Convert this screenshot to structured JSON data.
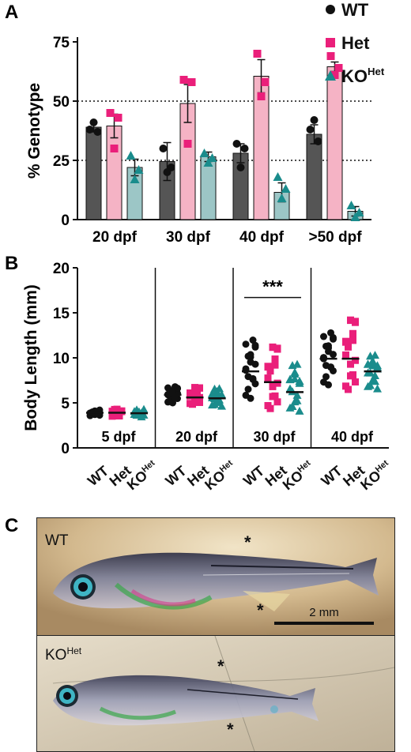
{
  "panels": {
    "a": "A",
    "b": "B",
    "c": "C"
  },
  "legend": [
    {
      "label": "WT",
      "sup": "",
      "color": "#111111",
      "marker": "circle"
    },
    {
      "label": "Het",
      "sup": "",
      "color": "#ea1f7a",
      "marker": "square"
    },
    {
      "label": "KO",
      "sup": "Het",
      "color": "#1a8c8c",
      "marker": "triangle"
    }
  ],
  "colors": {
    "wt_bar": "#555555",
    "het_bar": "#f5b3c5",
    "ko_bar": "#9cc6c6",
    "wt_dot": "#111111",
    "het_dot": "#ea1f7a",
    "ko_dot": "#1a8c8c"
  },
  "chart_data": [
    {
      "type": "bar",
      "ylabel": "% Genotype",
      "ylim": [
        0,
        75
      ],
      "yticks": [
        0,
        25,
        50,
        75
      ],
      "reference_lines": [
        25,
        50
      ],
      "categories": [
        "20 dpf",
        "30 dpf",
        "40 dpf",
        ">50 dpf"
      ],
      "series": [
        {
          "name": "WT",
          "values": [
            39,
            24.5,
            28,
            36
          ],
          "sem": [
            2,
            8,
            4,
            4
          ],
          "points": [
            [
              38,
              37,
              41
            ],
            [
              30,
              22,
              20
            ],
            [
              32,
              30,
              22
            ],
            [
              38,
              33,
              42
            ]
          ]
        },
        {
          "name": "Het",
          "values": [
            39.5,
            49,
            60.5,
            64.5
          ],
          "sem": [
            5,
            8,
            7,
            2
          ],
          "points": [
            [
              45,
              43,
              30
            ],
            [
              59,
              58,
              32
            ],
            [
              70,
              58,
              52
            ],
            [
              69,
              64,
              61
            ]
          ]
        },
        {
          "name": "KO",
          "values": [
            22,
            26.5,
            11.5,
            3.5
          ],
          "sem": [
            3.5,
            2,
            4,
            2
          ],
          "points": [
            [
              27,
              21,
              17
            ],
            [
              28,
              26,
              24
            ],
            [
              18,
              13,
              9
            ],
            [
              6,
              3,
              1
            ]
          ]
        }
      ]
    },
    {
      "type": "scatter",
      "ylabel": "Body Length  (mm)",
      "ylim": [
        0,
        20
      ],
      "yticks": [
        0,
        5,
        10,
        15,
        20
      ],
      "groups": [
        "5 dpf",
        "20 dpf",
        "30 dpf",
        "40 dpf"
      ],
      "genotypes": [
        {
          "label": "WT",
          "sup": ""
        },
        {
          "label": "Het",
          "sup": ""
        },
        {
          "label": "KO",
          "sup": "Het"
        }
      ],
      "significance": {
        "group": "30 dpf",
        "label": "***"
      },
      "medians": [
        [
          3.9,
          3.9,
          3.85
        ],
        [
          5.9,
          5.6,
          5.5
        ],
        [
          8.5,
          7.3,
          6.2
        ],
        [
          9.9,
          9.9,
          8.5
        ]
      ],
      "spreads": [
        [
          [
            3.5,
            4.2
          ],
          [
            3.5,
            4.3
          ],
          [
            3.4,
            4.3
          ]
        ],
        [
          [
            5.0,
            6.8
          ],
          [
            4.8,
            6.7
          ],
          [
            4.6,
            6.6
          ]
        ],
        [
          [
            5.5,
            12.0
          ],
          [
            4.2,
            11.2
          ],
          [
            4.0,
            9.3
          ]
        ],
        [
          [
            7.0,
            12.8
          ],
          [
            6.3,
            14.2
          ],
          [
            6.5,
            10.3
          ]
        ]
      ]
    }
  ],
  "photos": {
    "wt": {
      "label": "WT",
      "sup": "",
      "asterisk": "*",
      "scalebar": "2 mm"
    },
    "ko": {
      "label": "KO",
      "sup": "Het",
      "asterisk": "*"
    }
  }
}
